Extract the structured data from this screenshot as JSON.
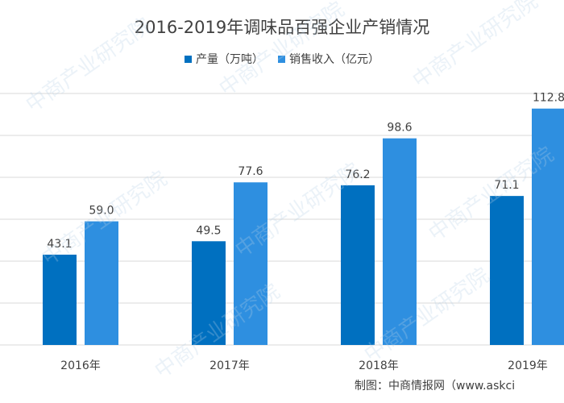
{
  "title": "2016-2019年调味品百强企业产销情况",
  "credit": "制图：中商情报网（www.askci",
  "watermark": "中商产业研究院",
  "colors": {
    "production": "#0070c0",
    "sales": "#2e8fe0",
    "grid": "#d9d9d9",
    "axis_text": "#404040"
  },
  "chart_data": {
    "type": "bar",
    "title": "2016-2019年调味品百强企业产销情况",
    "categories": [
      "2016年",
      "2017年",
      "2018年",
      "2019年"
    ],
    "series": [
      {
        "name": "产量（万吨）",
        "values": [
          43.1,
          49.5,
          76.2,
          71.1
        ],
        "labels": [
          "43.1",
          "49.5",
          "76.2",
          "71.1"
        ]
      },
      {
        "name": "销售收入（亿元）",
        "values": [
          59.0,
          77.6,
          98.6,
          112.8
        ],
        "labels": [
          "59.0",
          "77.6",
          "98.6",
          "112.8"
        ]
      }
    ],
    "ylim": [
      0,
      120
    ],
    "grid": true,
    "legend_position": "top-center"
  }
}
